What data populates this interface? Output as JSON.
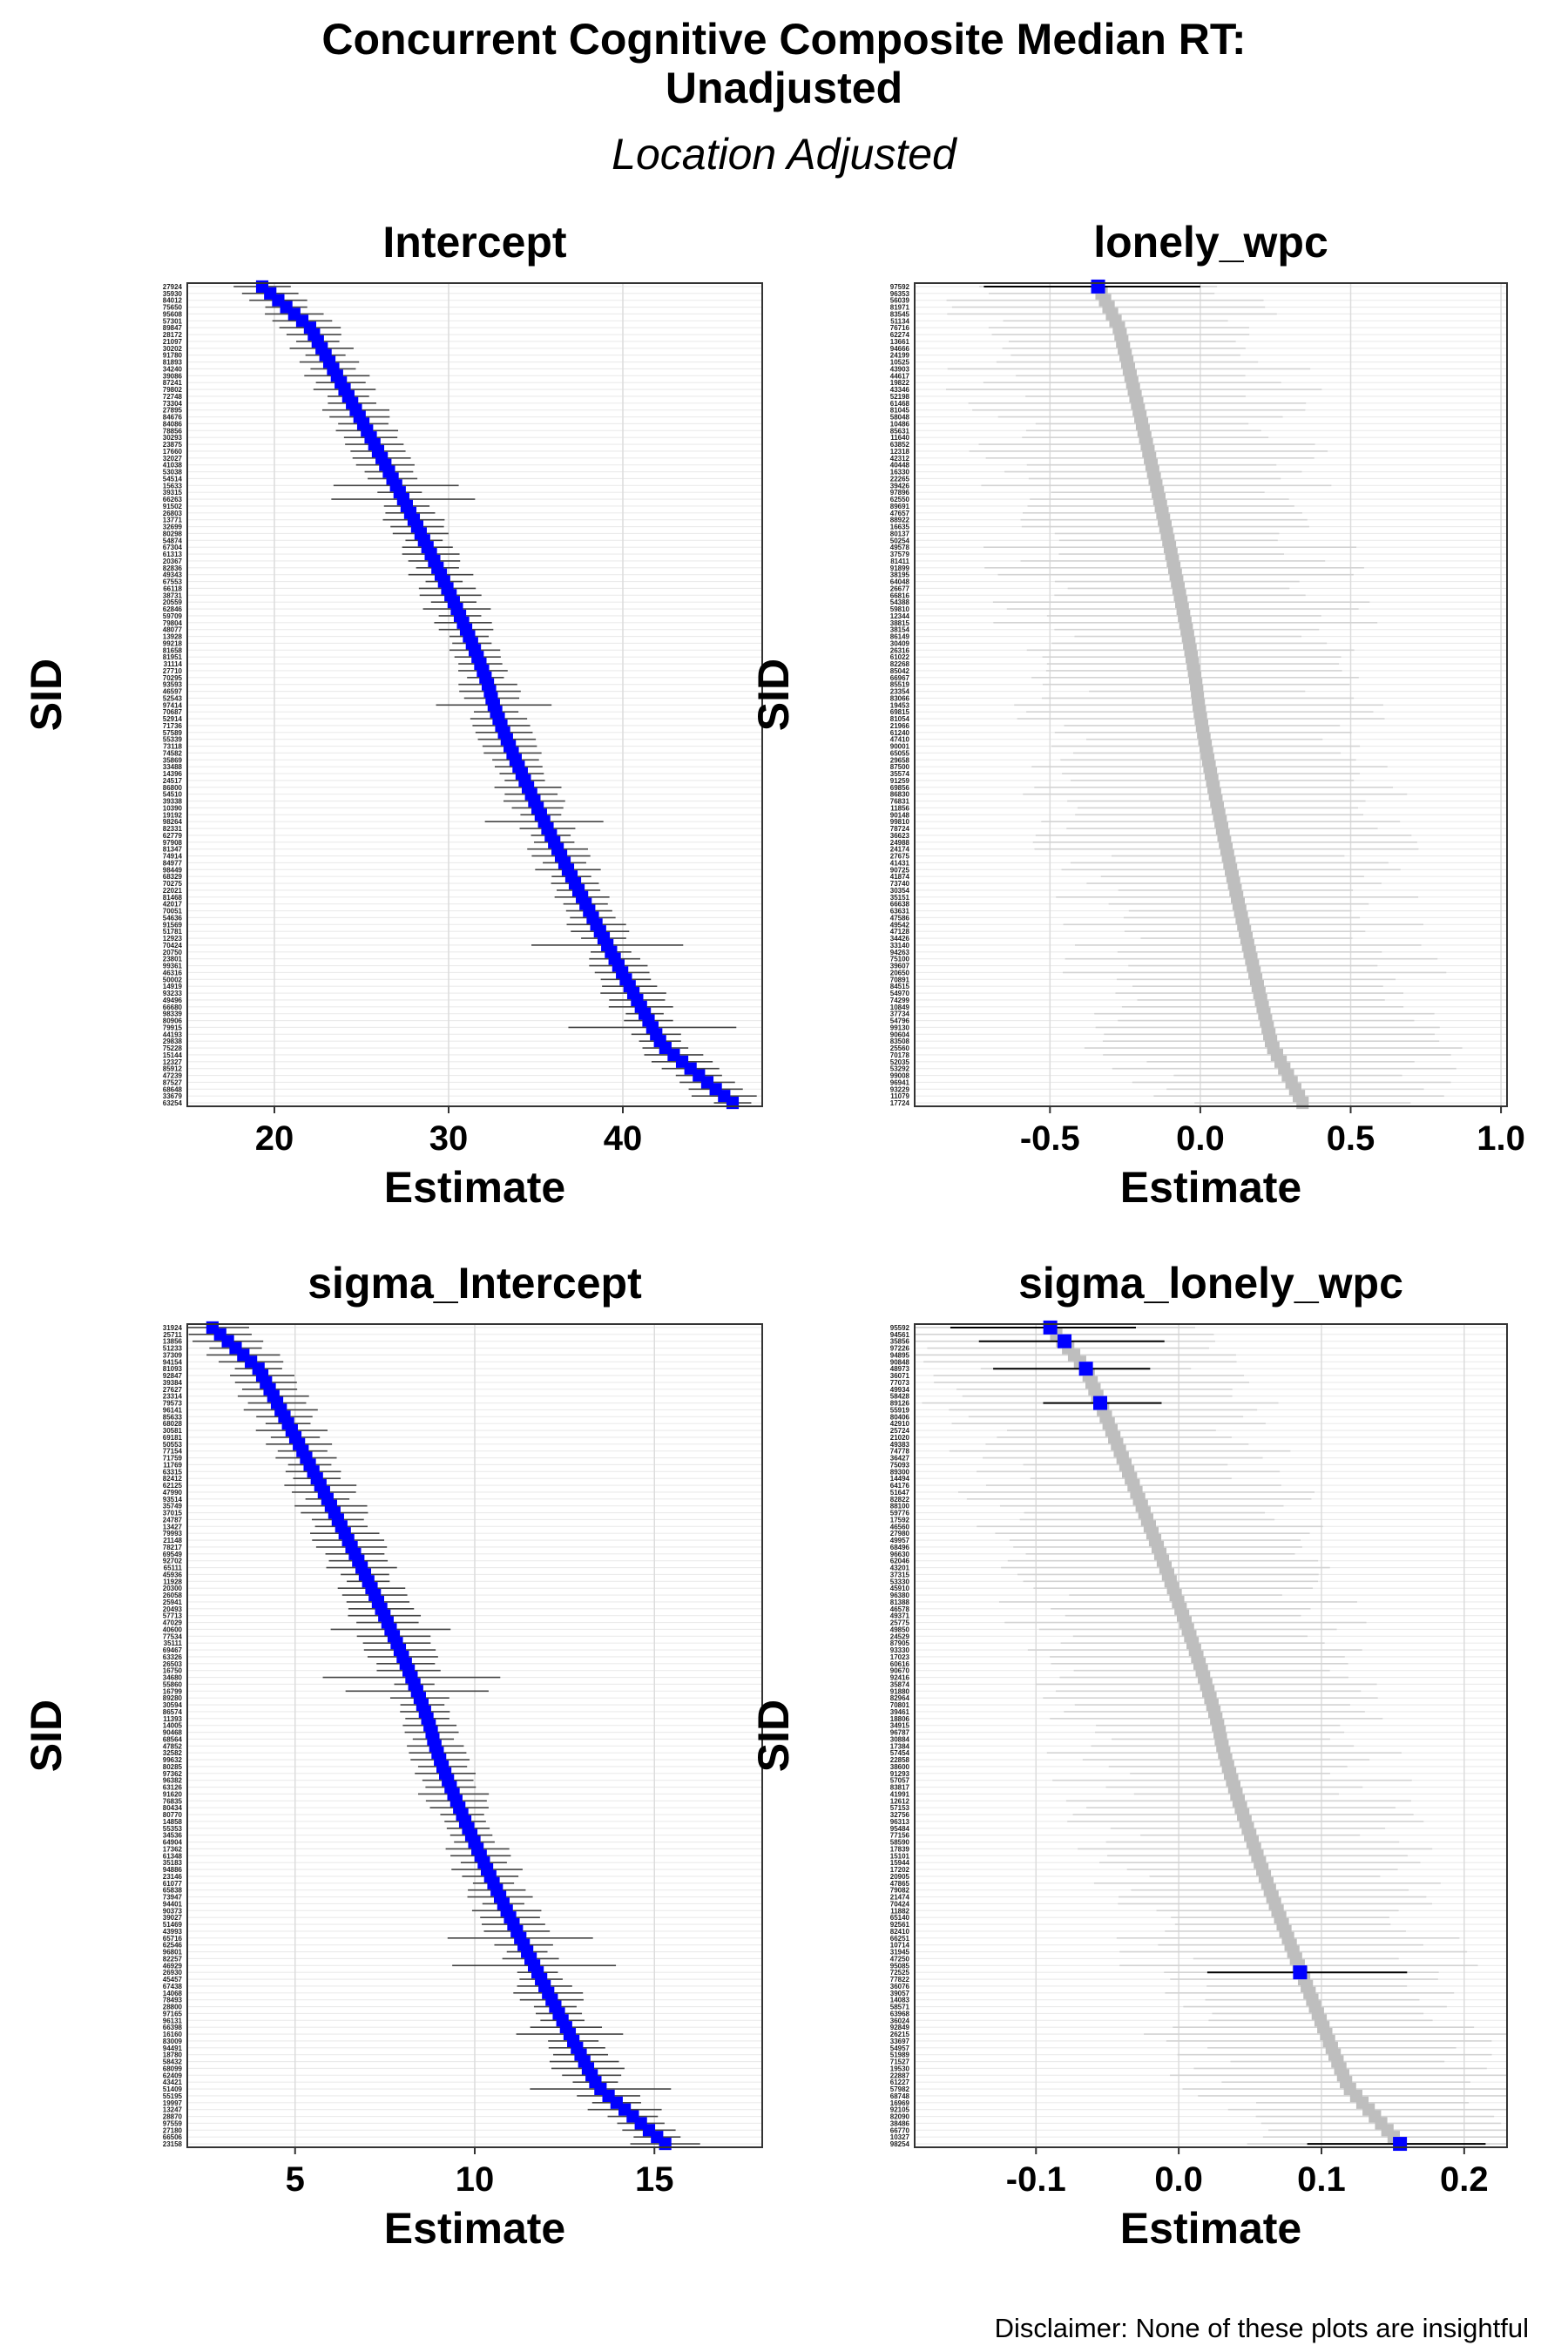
{
  "title_line1": "Concurrent Cognitive Composite Median RT:",
  "title_line2": "Unadjusted",
  "subtitle": "Location Adjusted",
  "disclaimer": "Disclaimer: None of these plots are insightful",
  "colors": {
    "highlight": "#0000FF",
    "normal_point": "#BEBEBE",
    "normal_line": "#D3D3D3",
    "highlight_line": "#000000",
    "grid": "#EBEBEB",
    "panel_border": "#333333"
  },
  "chart_data": [
    {
      "type": "scatter",
      "title": "Intercept",
      "xlabel": "Estimate",
      "ylabel": "SID",
      "xlim": [
        15,
        48
      ],
      "xticks": [
        20,
        30,
        40
      ],
      "xtick_labels": [
        "20",
        "30",
        "40"
      ],
      "n_subjects": 120,
      "sorted_by_estimate": true,
      "point_range": [
        19.3,
        46.3
      ],
      "typical_interval_halfwidth": 1.5,
      "highlighted": "all",
      "sid_labels_visible": [
        "27924",
        "63254"
      ],
      "grid": true
    },
    {
      "type": "scatter",
      "title": "lonely_wpc",
      "xlabel": "Estimate",
      "ylabel": "SID",
      "xlim": [
        -0.95,
        1.02
      ],
      "xticks": [
        -0.5,
        0.0,
        0.5,
        1.0
      ],
      "xtick_labels": [
        "-0.5",
        "0.0",
        "0.5",
        "1.0"
      ],
      "n_subjects": 120,
      "sorted_by_estimate": true,
      "point_range": [
        -0.34,
        0.34
      ],
      "typical_interval_halfwidth": 0.5,
      "highlighted_points": [
        {
          "estimate": -0.34,
          "lower": -0.72,
          "upper": 0.0
        }
      ],
      "sid_labels_visible": [
        "97592",
        "17724"
      ],
      "grid": true
    },
    {
      "type": "scatter",
      "title": "sigma_Intercept",
      "xlabel": "Estimate",
      "ylabel": "SID",
      "xlim": [
        2.0,
        18.0
      ],
      "xticks": [
        5,
        10,
        15
      ],
      "xtick_labels": [
        "5",
        "10",
        "15"
      ],
      "n_subjects": 120,
      "sorted_by_estimate": true,
      "point_range": [
        2.7,
        15.3
      ],
      "typical_interval_halfwidth": 0.8,
      "highlighted": "all",
      "sid_labels_visible": [
        "31924",
        "23158"
      ],
      "grid": true
    },
    {
      "type": "scatter",
      "title": "sigma_lonely_wpc",
      "xlabel": "Estimate",
      "ylabel": "SID",
      "xlim": [
        -0.185,
        0.23
      ],
      "xticks": [
        -0.1,
        0.0,
        0.1,
        0.2
      ],
      "xtick_labels": [
        "-0.1",
        "0.0",
        "0.1",
        "0.2"
      ],
      "n_subjects": 120,
      "sorted_by_estimate": true,
      "point_range": [
        -0.09,
        0.155
      ],
      "typical_interval_halfwidth": 0.1,
      "highlighted_points": [
        {
          "estimate": -0.09,
          "lower": -0.16,
          "upper": -0.03
        },
        {
          "estimate": -0.08,
          "lower": -0.14,
          "upper": -0.01
        },
        {
          "estimate": -0.065,
          "lower": -0.13,
          "upper": -0.02
        },
        {
          "estimate": -0.055,
          "lower": -0.095,
          "upper": -0.012
        },
        {
          "estimate": 0.085,
          "lower": 0.02,
          "upper": 0.16
        },
        {
          "estimate": 0.155,
          "lower": 0.09,
          "upper": 0.215
        }
      ],
      "sid_labels_visible": [
        "95592",
        "98254"
      ],
      "grid": true
    }
  ]
}
